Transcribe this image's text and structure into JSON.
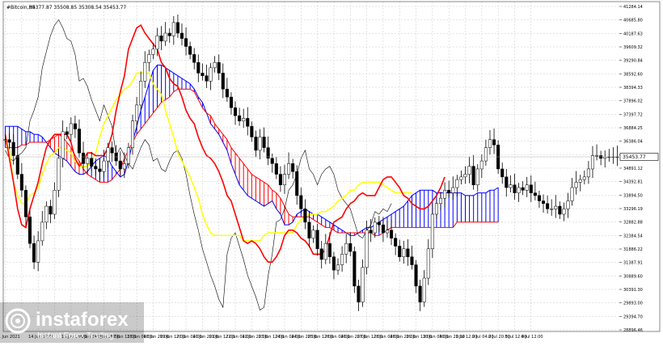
{
  "header": {
    "symbol": "#Bitcoin,H4",
    "ohlc": "35377.87 35508.85 35308.54 35453.77"
  },
  "watermark": {
    "brand": "instaforex",
    "tagline": "Instant Forex Trading",
    "icon": "instaforex-logo-icon"
  },
  "colors": {
    "background": "#ffffff",
    "grid": "#c8c8c8",
    "price": "#000000",
    "tenkan": "#ff0000",
    "kijun": "#ffff00",
    "chikou": "#000000",
    "cloud_bull": "#0000ff",
    "cloud_bear": "#ff0000"
  },
  "chart_data": {
    "type": "line",
    "ylim": [
      28896.46,
      41284.14
    ],
    "current_price": 35453.77,
    "current_price_label": "35453.77",
    "y_ticks": [
      "41284.14",
      "40685.80",
      "40187.63",
      "39609.32",
      "39290.84",
      "38592.60",
      "38394.33",
      "37896.02",
      "37397.72",
      "36884.25",
      "36386.04",
      "35887.75",
      "34891.12",
      "34392.81",
      "33894.50",
      "33296.19",
      "32882.88",
      "32384.54",
      "31886.22",
      "31387.91",
      "30889.60",
      "30391.30",
      "29893.00",
      "29394.70",
      "28896.46"
    ],
    "x_labels": [
      "11 Jun 2021",
      "",
      "14 Jun 12:00",
      "",
      "15 Jun 12:00",
      "16 Jun 04:00",
      "16 Jun 20:00",
      "17 Jun 12:00",
      "18 Jun 04:00",
      "18 Jun 20:00",
      "19 Jun 12:00",
      "20 Jun 04:00",
      "20 Jun 20:00",
      "21 Jun 12:00",
      "22 Jun 04:00",
      "22 Jun 20:00",
      "23 Jun 12:00",
      "24 Jun 04:00",
      "24 Jun 20:00",
      "25 Jun 12:00",
      "26 Jun 04:00",
      "26 Jun 20:00",
      "27 Jun 12:00",
      "28 Jun 04:00",
      "28 Jun 20:00",
      "29 Jun 12:00",
      "30 Jun 04:00",
      "30 Jun 20:00",
      "1 Jul 12:00",
      "2 Jul 04:00",
      "2 Jul 20:00",
      "3 Jul 12:00",
      "4 Jul 12:00"
    ],
    "x_label_bars": [
      0,
      4,
      8,
      12,
      16,
      20,
      24,
      28,
      32,
      36,
      40,
      44,
      48,
      52,
      56,
      60,
      64,
      68,
      72,
      76,
      80,
      84,
      88,
      92,
      96,
      100,
      104,
      108,
      112,
      116,
      120,
      124,
      128
    ],
    "x_label_stride_note": "",
    "bars_total": 150,
    "close": [
      36100,
      36000,
      35500,
      34800,
      34200,
      33200,
      32200,
      31500,
      32300,
      33000,
      33600,
      33300,
      34200,
      35400,
      36400,
      36300,
      36700,
      36500,
      35600,
      35200,
      35400,
      35100,
      35000,
      34900,
      35300,
      35800,
      35600,
      35300,
      35000,
      35200,
      35800,
      36800,
      37400,
      38300,
      39000,
      39300,
      39500,
      40000,
      39800,
      40100,
      40000,
      40500,
      40100,
      39900,
      39600,
      39300,
      39000,
      38600,
      38500,
      38300,
      38800,
      39000,
      38600,
      38000,
      37700,
      37300,
      37000,
      36800,
      36900,
      36600,
      36200,
      35700,
      36200,
      35800,
      35400,
      35200,
      34800,
      34400,
      34800,
      35200,
      34900,
      34000,
      33500,
      33000,
      32400,
      32700,
      32000,
      31600,
      32200,
      31700,
      31200,
      31400,
      31800,
      32200,
      31900,
      30600,
      30000,
      31300,
      32700,
      32600,
      33000,
      32900,
      32600,
      32700,
      32400,
      32100,
      31700,
      32000,
      31700,
      31400,
      30600,
      30000,
      30900,
      32000,
      33300,
      33700,
      33900,
      34200,
      34100,
      34300,
      34600,
      34700,
      34800,
      35100,
      34400,
      35000,
      35300,
      35800,
      36100,
      35900,
      35000,
      34700,
      34300,
      34400,
      34100,
      34300,
      34200,
      34400,
      34100,
      34000,
      33800,
      33700,
      33500,
      33500,
      33600,
      33300,
      33500,
      33800,
      34300,
      34500,
      34600,
      34700,
      35000,
      35500,
      35500,
      35400,
      35453,
      35450,
      35455,
      35453
    ],
    "tenkan": [
      36300,
      35400,
      34500,
      33500,
      32900,
      32800,
      33500,
      34000,
      34500,
      35200,
      35800,
      36100,
      36300,
      36300,
      36300,
      36300,
      36000,
      35400,
      35100,
      35300,
      35600,
      35600,
      35500,
      35500,
      35500,
      35800,
      36300,
      37200,
      37900,
      38500,
      39500,
      39900,
      40300,
      40400,
      40100,
      39900,
      39700,
      39500,
      39000,
      38800,
      38400,
      38200,
      38100,
      37700,
      37200,
      36900,
      36700,
      36200,
      35800,
      35500,
      35400,
      35200,
      34900,
      34500,
      34000,
      33800,
      33300,
      32800,
      32300,
      32200,
      32300,
      32200,
      32000,
      31700,
      31500,
      31500,
      31700,
      32000,
      32500,
      32700,
      32700,
      32600,
      32400,
      32300,
      32100,
      31800,
      31800,
      31800,
      32000,
      32500,
      33000,
      33100,
      33200,
      33500,
      33700,
      33800,
      34000,
      34100,
      34000,
      34000,
      34000,
      34300,
      34600,
      34700,
      34700,
      34500,
      34300,
      34000,
      33900,
      33700,
      33600,
      33500,
      33500,
      33600,
      33800,
      34000,
      34300,
      34700
    ],
    "tenkan_start_bar": 0,
    "kijun": [
      36000,
      35700,
      34500,
      34000,
      33700,
      33700,
      34000,
      34100,
      34300,
      34800,
      35200,
      35500,
      35600,
      35800,
      35800,
      35700,
      35600,
      35300,
      35100,
      35100,
      35100,
      35300,
      35600,
      36200,
      36700,
      37000,
      37300,
      37600,
      37800,
      38000,
      38100,
      38300,
      38600,
      38600,
      38600,
      38600,
      38200,
      38000,
      37800,
      37200,
      36700,
      36200,
      35600,
      35300,
      35000,
      34700,
      34300,
      33900,
      33300,
      32900,
      32600,
      32500,
      32500,
      32500,
      32500,
      32500,
      32500,
      32500,
      32300,
      32300,
      32300,
      32300,
      32300,
      32500,
      32600,
      32600,
      32600,
      32600,
      32600,
      32600,
      32600,
      32900,
      33100,
      33200,
      33300,
      33300,
      33300,
      33400,
      33400,
      33500,
      33600,
      33800,
      33900,
      34000,
      34200,
      34200,
      34400,
      34500,
      34500,
      34500,
      34500,
      34500,
      34400,
      34300,
      34200,
      34100,
      34100,
      34100,
      34100,
      34100
    ],
    "kijun_start_bar": 0,
    "chikou": [
      35700,
      35400,
      35300,
      35500,
      35600,
      35800,
      36800,
      37200,
      37700,
      38800,
      39400,
      40000,
      40400,
      40600,
      40300,
      39900,
      39800,
      39300,
      38300,
      38400,
      38100,
      37600,
      37200,
      36800,
      37400,
      37000,
      36600,
      35500,
      35800,
      35500,
      35200,
      35000,
      35400,
      35800,
      36100,
      35900,
      35300,
      35400,
      35000,
      34900,
      35300,
      35600,
      35700,
      35400,
      34800,
      34000,
      33300,
      32700,
      32000,
      31500,
      31000,
      30600,
      30100,
      29800,
      31800,
      32400,
      32600,
      32100,
      31600,
      31000,
      30600,
      30200,
      29700,
      29800,
      31000,
      31800,
      33000,
      33100,
      33500,
      34200,
      34400,
      34800,
      35400,
      35700,
      35000,
      34800,
      34400,
      34800,
      35000,
      35100,
      34800,
      34200,
      33900,
      33700,
      33500,
      33000,
      32500,
      32400,
      32700,
      32900,
      33400,
      33300,
      33500,
      33400,
      33700
    ],
    "chikou_start_bar": 0,
    "span_a": [
      36600,
      36600,
      36600,
      36600,
      36500,
      36400,
      36400,
      36300,
      36300,
      36200,
      36000,
      35800,
      35600,
      35500,
      35400,
      35300,
      35100,
      34900,
      34800,
      34800,
      34900,
      35100,
      35300,
      35400,
      35500,
      35400,
      35100,
      34900,
      34700,
      34800,
      35300,
      36000,
      36600,
      37200,
      37700,
      38200,
      38700,
      38900,
      38900,
      38800,
      38700,
      38600,
      38500,
      38400,
      38300,
      38200,
      38000,
      37700,
      37500,
      37100,
      36700,
      36500,
      36300,
      36000,
      35700,
      35200,
      34800,
      34400,
      34200,
      34000,
      33900,
      33800,
      33700,
      33600,
      33700,
      33800,
      33500,
      33300,
      32900,
      32900,
      33000,
      33300,
      33400,
      33500,
      33400,
      33300,
      33300,
      33200,
      33100,
      33000,
      32900,
      32800,
      32700,
      32600,
      32500,
      32500,
      32600,
      32700,
      32800,
      32800,
      32900,
      33000,
      33100,
      33200,
      33300,
      33400,
      33500,
      33600,
      33800,
      34000,
      34100,
      34200,
      34200,
      34200,
      34200,
      34100,
      34100,
      34100,
      34100,
      34100,
      34100,
      34100,
      34000,
      34000,
      34000,
      34100,
      34100,
      34100,
      34200,
      34200,
      34300
    ],
    "span_b": [
      35800,
      35800,
      35800,
      35800,
      35900,
      35900,
      36000,
      36000,
      36000,
      36000,
      36000,
      36100,
      36200,
      36300,
      36200,
      36000,
      35800,
      35500,
      35300,
      35000,
      34800,
      34700,
      34600,
      34500,
      34500,
      34500,
      34600,
      34800,
      35000,
      35400,
      35700,
      36000,
      36300,
      36500,
      36700,
      36900,
      37100,
      37300,
      37500,
      37600,
      37700,
      37900,
      38000,
      38000,
      38000,
      38000,
      37900,
      37600,
      37300,
      37100,
      37000,
      36700,
      36500,
      36300,
      36100,
      35800,
      35600,
      35400,
      35200,
      35000,
      34800,
      34700,
      34600,
      34500,
      34400,
      34200,
      34100,
      33900,
      33600,
      33300,
      33200,
      33200,
      33200,
      33200,
      33200,
      33100,
      33000,
      32900,
      32800,
      32800,
      32700,
      32600,
      32600,
      32600,
      32600,
      32600,
      32600,
      32600,
      32600,
      32600,
      32500,
      32500,
      32600,
      32700,
      32800,
      32800,
      32800,
      32800,
      32800,
      32800,
      32800,
      32800,
      32800,
      32800,
      32800,
      32800,
      32800,
      32800,
      32800,
      32800,
      33000,
      33000,
      33000,
      33000,
      33000,
      33000,
      33000,
      33000,
      33000,
      33000,
      33000
    ],
    "span_start_bar": 0
  }
}
